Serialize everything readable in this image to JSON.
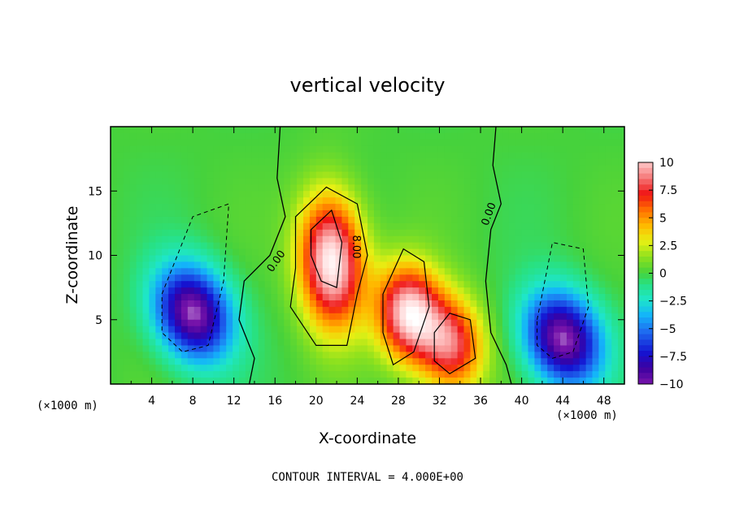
{
  "chart_data": {
    "type": "heatmap",
    "title": "vertical velocity",
    "xlabel": "X-coordinate",
    "ylabel": "Z-coordinate",
    "x_unit_left": "(×1000 m)",
    "x_unit_right": "(×1000 m)",
    "xlim": [
      0,
      50
    ],
    "ylim": [
      0,
      20
    ],
    "xticks": [
      "4",
      "8",
      "12",
      "16",
      "20",
      "24",
      "28",
      "32",
      "36",
      "40",
      "44",
      "48"
    ],
    "yticks": [
      "5",
      "10",
      "15"
    ],
    "colorbar": {
      "range": [
        -10,
        10
      ],
      "ticks": [
        "10",
        "7.5",
        "5",
        "2.5",
        "0",
        "−2.5",
        "−5",
        "−7.5",
        "−10"
      ]
    },
    "contour_labels": [
      "0.00",
      "8.00",
      "0.00"
    ],
    "features": [
      {
        "kind": "updraft",
        "x": 21.5,
        "z": 9.5,
        "peak": 12
      },
      {
        "kind": "updraft",
        "x": 29.0,
        "z": 5.5,
        "peak": 11
      },
      {
        "kind": "updraft",
        "x": 33.2,
        "z": 3.0,
        "peak": 8.5
      },
      {
        "kind": "downdraft",
        "x": 8.0,
        "z": 5.5,
        "peak": -11
      },
      {
        "kind": "downdraft",
        "x": 44.0,
        "z": 3.5,
        "peak": -11
      }
    ],
    "footer": "CONTOUR INTERVAL = 4.000E+00"
  }
}
